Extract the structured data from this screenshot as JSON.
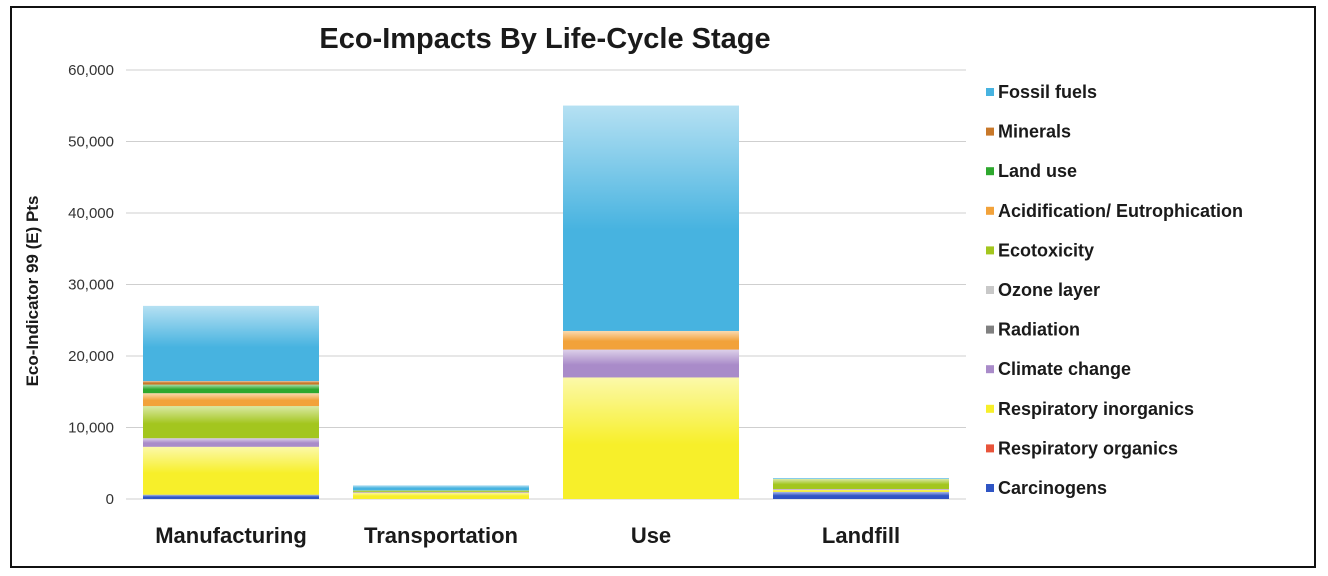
{
  "chart_data": {
    "type": "bar",
    "stacked": true,
    "title": "Eco-Impacts By Life-Cycle Stage",
    "xlabel": "",
    "ylabel": "Eco-Indicator 99 (E) Pts",
    "ylim": [
      0,
      60000
    ],
    "yticks": [
      "0",
      "10,000",
      "20,000",
      "30,000",
      "40,000",
      "50,000",
      "60,000"
    ],
    "grid": true,
    "legend_position": "right",
    "categories": [
      "Manufacturing",
      "Transportation",
      "Use",
      "Landfill"
    ],
    "series": [
      {
        "name": "Carcinogens",
        "color": "#2f55c4",
        "values": [
          600,
          0,
          0,
          1000
        ]
      },
      {
        "name": "Respiratory organics",
        "color": "#e8543a",
        "values": [
          0,
          0,
          0,
          0
        ]
      },
      {
        "name": "Respiratory inorganics",
        "color": "#f7ef2a",
        "values": [
          6700,
          900,
          17000,
          300
        ]
      },
      {
        "name": "Climate change",
        "color": "#a98bc9",
        "values": [
          1200,
          100,
          3900,
          100
        ]
      },
      {
        "name": "Radiation",
        "color": "#808080",
        "values": [
          0,
          0,
          0,
          0
        ]
      },
      {
        "name": "Ozone layer",
        "color": "#c8c8c8",
        "values": [
          0,
          0,
          0,
          0
        ]
      },
      {
        "name": "Ecotoxicity",
        "color": "#a3c61e",
        "values": [
          4500,
          200,
          0,
          1400
        ]
      },
      {
        "name": "Acidification/ Eutrophication",
        "color": "#f2a23a",
        "values": [
          1800,
          0,
          2600,
          0
        ]
      },
      {
        "name": "Land use",
        "color": "#2ea82e",
        "values": [
          1200,
          0,
          0,
          0
        ]
      },
      {
        "name": "Minerals",
        "color": "#c8782a",
        "values": [
          500,
          0,
          0,
          0
        ]
      },
      {
        "name": "Fossil fuels",
        "color": "#47b3e0",
        "values": [
          10500,
          700,
          31500,
          100
        ]
      }
    ]
  }
}
